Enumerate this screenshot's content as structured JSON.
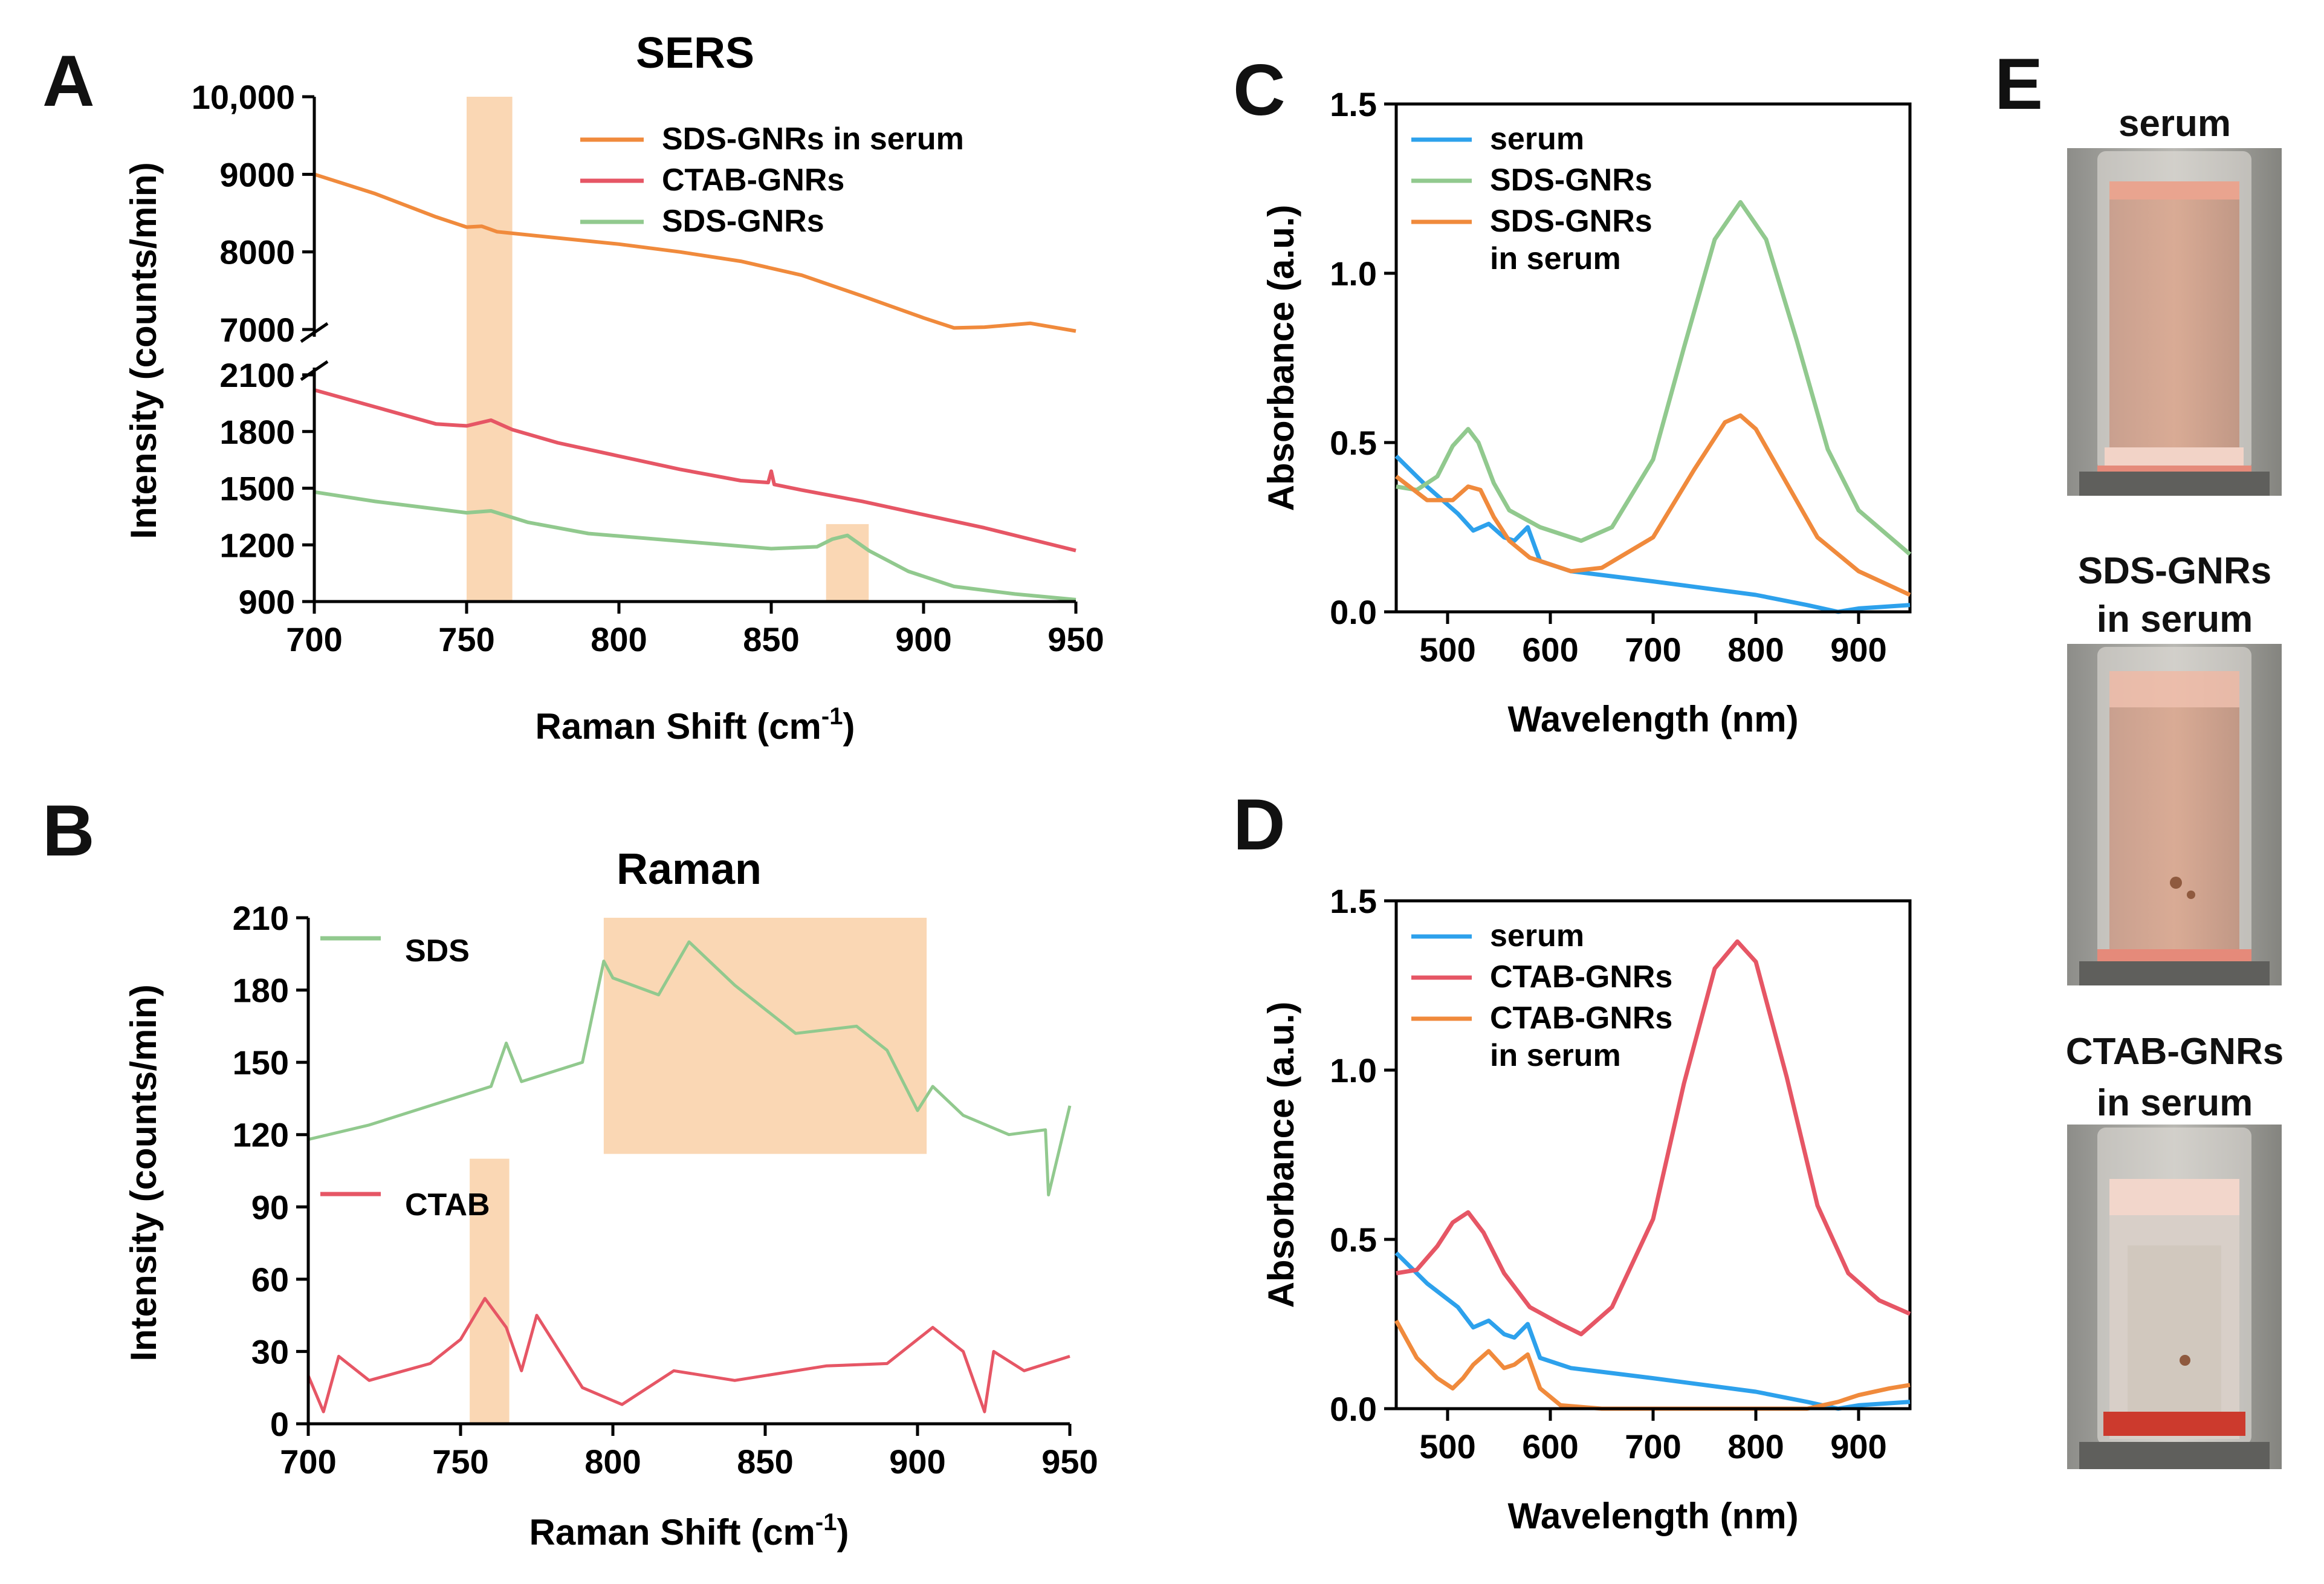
{
  "chart_data": [
    {
      "panel": "A",
      "type": "line",
      "title": "SERS",
      "xlabel": "Raman Shift (cm",
      "xlabel_sup": "-1",
      "xlabel_end": ")",
      "ylabel": "Intensity (counts/min)",
      "xlim": [
        700,
        950
      ],
      "xticks": [
        700,
        750,
        800,
        850,
        900,
        950
      ],
      "y_upper_range": [
        7000,
        10000
      ],
      "y_upper_ticks": [
        "7000",
        "8000",
        "9000",
        "10,000"
      ],
      "y_lower_range": [
        900,
        2100
      ],
      "y_lower_ticks": [
        "900",
        "1200",
        "1500",
        "1800",
        "2100"
      ],
      "highlight_x": [
        [
          750,
          765
        ],
        [
          868,
          882
        ]
      ],
      "highlight_y_lower": [
        null,
        [
          900,
          1310
        ]
      ],
      "legend": [
        "SDS-GNRs in serum",
        "CTAB-GNRs",
        "SDS-GNRs"
      ],
      "series": [
        {
          "name": "SDS-GNRs in serum",
          "color": "#f08a3c",
          "axis": "upper",
          "x": [
            700,
            720,
            740,
            750,
            755,
            760,
            780,
            800,
            820,
            840,
            860,
            880,
            900,
            910,
            920,
            935,
            950
          ],
          "y": [
            9000,
            8750,
            8450,
            8320,
            8330,
            8260,
            8180,
            8100,
            8000,
            7880,
            7700,
            7430,
            7150,
            7020,
            7030,
            7080,
            6980
          ]
        },
        {
          "name": "CTAB-GNRs",
          "color": "#e65665",
          "axis": "lower",
          "x": [
            700,
            720,
            740,
            750,
            758,
            765,
            780,
            800,
            820,
            840,
            849,
            850,
            851,
            860,
            880,
            900,
            920,
            940,
            950
          ],
          "y": [
            2020,
            1930,
            1840,
            1830,
            1860,
            1810,
            1740,
            1670,
            1600,
            1540,
            1530,
            1590,
            1520,
            1490,
            1430,
            1360,
            1290,
            1210,
            1170
          ]
        },
        {
          "name": "SDS-GNRs",
          "color": "#91c98e",
          "axis": "lower",
          "x": [
            700,
            720,
            740,
            750,
            758,
            770,
            790,
            820,
            850,
            865,
            870,
            875,
            882,
            895,
            910,
            930,
            950
          ],
          "y": [
            1480,
            1430,
            1390,
            1370,
            1380,
            1320,
            1260,
            1220,
            1180,
            1190,
            1230,
            1250,
            1170,
            1060,
            980,
            940,
            910
          ]
        }
      ]
    },
    {
      "panel": "B",
      "type": "line",
      "title": "Raman",
      "xlabel": "Raman Shift (cm",
      "xlabel_sup": "-1",
      "xlabel_end": ")",
      "ylabel": "Intensity (counts/min)",
      "xlim": [
        700,
        950
      ],
      "xticks": [
        700,
        750,
        800,
        850,
        900,
        950
      ],
      "ylim": [
        0,
        210
      ],
      "yticks": [
        0,
        30,
        60,
        90,
        120,
        150,
        180,
        210
      ],
      "highlights": [
        {
          "x": [
            797,
            903
          ],
          "y": [
            112,
            210
          ]
        },
        {
          "x": [
            753,
            766
          ],
          "y": [
            0,
            110
          ]
        }
      ],
      "legend": [
        "SDS",
        "CTAB"
      ],
      "series": [
        {
          "name": "SDS",
          "color": "#91c98e",
          "x": [
            700,
            720,
            740,
            760,
            765,
            770,
            790,
            797,
            800,
            815,
            825,
            840,
            860,
            880,
            890,
            900,
            905,
            915,
            930,
            942,
            943,
            950
          ],
          "y": [
            118,
            124,
            132,
            140,
            158,
            142,
            150,
            192,
            185,
            178,
            200,
            182,
            162,
            165,
            155,
            130,
            140,
            128,
            120,
            122,
            95,
            132
          ]
        },
        {
          "name": "CTAB",
          "color": "#e65665",
          "x": [
            700,
            705,
            710,
            720,
            740,
            750,
            758,
            765,
            770,
            775,
            790,
            803,
            820,
            840,
            870,
            890,
            905,
            915,
            922,
            925,
            935,
            950
          ],
          "y": [
            20,
            5,
            28,
            18,
            25,
            35,
            52,
            40,
            22,
            45,
            15,
            8,
            22,
            18,
            24,
            25,
            40,
            30,
            5,
            30,
            22,
            28
          ]
        }
      ]
    },
    {
      "panel": "C",
      "type": "line",
      "xlabel": "Wavelength (nm)",
      "ylabel": "Absorbance (a.u.)",
      "xlim": [
        450,
        950
      ],
      "xticks": [
        500,
        600,
        700,
        800,
        900
      ],
      "ylim": [
        0,
        1.5
      ],
      "yticks": [
        "0.0",
        "0.5",
        "1.0",
        "1.5"
      ],
      "legend": [
        "serum",
        "SDS-GNRs",
        "SDS-GNRs\nin serum"
      ],
      "series": [
        {
          "name": "serum",
          "color": "#2da1ec",
          "x": [
            450,
            480,
            510,
            525,
            540,
            555,
            565,
            578,
            590,
            620,
            700,
            800,
            850,
            880,
            900,
            950
          ],
          "y": [
            0.46,
            0.37,
            0.29,
            0.24,
            0.26,
            0.22,
            0.21,
            0.25,
            0.15,
            0.12,
            0.09,
            0.05,
            0.02,
            0.0,
            0.01,
            0.02
          ]
        },
        {
          "name": "SDS-GNRs",
          "color": "#91c98e",
          "x": [
            450,
            470,
            490,
            505,
            520,
            530,
            545,
            560,
            590,
            630,
            660,
            700,
            730,
            760,
            785,
            810,
            840,
            870,
            900,
            950
          ],
          "y": [
            0.37,
            0.36,
            0.4,
            0.49,
            0.54,
            0.5,
            0.38,
            0.3,
            0.25,
            0.21,
            0.25,
            0.45,
            0.78,
            1.1,
            1.21,
            1.1,
            0.8,
            0.48,
            0.3,
            0.17
          ]
        },
        {
          "name": "SDS-GNRs\nin serum",
          "color": "#f08a3c",
          "x": [
            450,
            480,
            505,
            520,
            532,
            545,
            560,
            580,
            620,
            650,
            700,
            740,
            770,
            785,
            800,
            830,
            860,
            900,
            950
          ],
          "y": [
            0.4,
            0.33,
            0.33,
            0.37,
            0.36,
            0.28,
            0.21,
            0.16,
            0.12,
            0.13,
            0.22,
            0.42,
            0.56,
            0.58,
            0.54,
            0.38,
            0.22,
            0.12,
            0.05
          ]
        }
      ]
    },
    {
      "panel": "D",
      "type": "line",
      "xlabel": "Wavelength (nm)",
      "ylabel": "Absorbance (a.u.)",
      "xlim": [
        450,
        950
      ],
      "xticks": [
        500,
        600,
        700,
        800,
        900
      ],
      "ylim": [
        0,
        1.5
      ],
      "yticks": [
        "0.0",
        "0.5",
        "1.0",
        "1.5"
      ],
      "legend": [
        "serum",
        "CTAB-GNRs",
        "CTAB-GNRs\nin serum"
      ],
      "series": [
        {
          "name": "serum",
          "color": "#2da1ec",
          "x": [
            450,
            480,
            510,
            525,
            540,
            555,
            565,
            578,
            590,
            620,
            700,
            800,
            850,
            880,
            900,
            950
          ],
          "y": [
            0.46,
            0.37,
            0.3,
            0.24,
            0.26,
            0.22,
            0.21,
            0.25,
            0.15,
            0.12,
            0.09,
            0.05,
            0.02,
            0.0,
            0.01,
            0.02
          ]
        },
        {
          "name": "CTAB-GNRs",
          "color": "#e65665",
          "x": [
            450,
            470,
            490,
            505,
            520,
            535,
            555,
            580,
            610,
            630,
            660,
            700,
            730,
            760,
            782,
            800,
            830,
            860,
            890,
            920,
            950
          ],
          "y": [
            0.4,
            0.41,
            0.48,
            0.55,
            0.58,
            0.52,
            0.4,
            0.3,
            0.25,
            0.22,
            0.3,
            0.56,
            0.96,
            1.3,
            1.38,
            1.32,
            0.98,
            0.6,
            0.4,
            0.32,
            0.28
          ]
        },
        {
          "name": "CTAB-GNRs\nin serum",
          "color": "#f08a3c",
          "x": [
            450,
            470,
            490,
            505,
            515,
            525,
            540,
            555,
            565,
            578,
            590,
            610,
            650,
            700,
            850,
            880,
            900,
            930,
            950
          ],
          "y": [
            0.26,
            0.15,
            0.09,
            0.06,
            0.09,
            0.13,
            0.17,
            0.12,
            0.13,
            0.16,
            0.06,
            0.01,
            0.0,
            0.0,
            0.0,
            0.02,
            0.04,
            0.06,
            0.07
          ]
        }
      ]
    }
  ],
  "panels": {
    "a_label": "A",
    "b_label": "B",
    "c_label": "C",
    "d_label": "D",
    "e_label": "E"
  },
  "photos": {
    "title_1": "serum",
    "title_2_line1": "SDS-GNRs",
    "title_2_line2": "in serum",
    "title_3_line1": "CTAB-GNRs",
    "title_3_line2": "in serum"
  }
}
